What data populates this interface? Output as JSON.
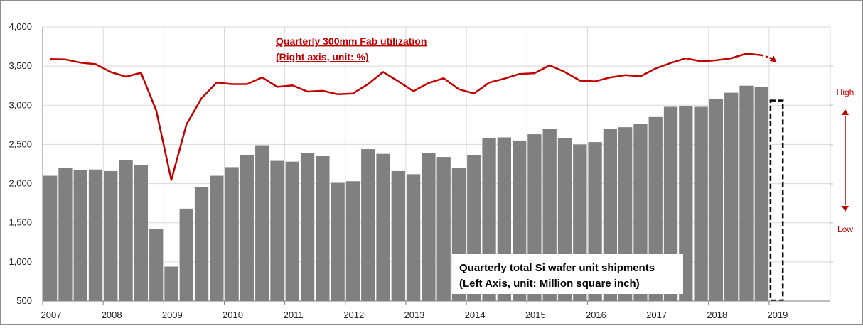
{
  "chart_data": {
    "type": "bar",
    "title": "",
    "categories": [
      "2007 Q1",
      "2007 Q2",
      "2007 Q3",
      "2007 Q4",
      "2008 Q1",
      "2008 Q2",
      "2008 Q3",
      "2008 Q4",
      "2009 Q1",
      "2009 Q2",
      "2009 Q3",
      "2009 Q4",
      "2010 Q1",
      "2010 Q2",
      "2010 Q3",
      "2010 Q4",
      "2011 Q1",
      "2011 Q2",
      "2011 Q3",
      "2011 Q4",
      "2012 Q1",
      "2012 Q2",
      "2012 Q3",
      "2012 Q4",
      "2013 Q1",
      "2013 Q2",
      "2013 Q3",
      "2013 Q4",
      "2014 Q1",
      "2014 Q2",
      "2014 Q3",
      "2014 Q4",
      "2015 Q1",
      "2015 Q2",
      "2015 Q3",
      "2015 Q4",
      "2016 Q1",
      "2016 Q2",
      "2016 Q3",
      "2016 Q4",
      "2017 Q1",
      "2017 Q2",
      "2017 Q3",
      "2017 Q4",
      "2018 Q1",
      "2018 Q2",
      "2018 Q3",
      "2018 Q4",
      "2019 Q1"
    ],
    "xtick_labels": [
      "2007",
      "2008",
      "2009",
      "2010",
      "2011",
      "2012",
      "2013",
      "2014",
      "2015",
      "2016",
      "2017",
      "2018",
      "2019"
    ],
    "ylim": [
      500,
      4000
    ],
    "ytick_values": [
      500,
      1000,
      1500,
      2000,
      2500,
      3000,
      3500,
      4000
    ],
    "ytick_labels": [
      "500",
      "1,000",
      "1,500",
      "2,000",
      "2,500",
      "3,000",
      "3,500",
      "4,000"
    ],
    "grid": true,
    "series": [
      {
        "name": "Quarterly total Si wafer unit shipments",
        "axis": "left",
        "color": "#808080",
        "values": [
          2100,
          2200,
          2170,
          2180,
          2160,
          2300,
          2240,
          1420,
          940,
          1680,
          1960,
          2100,
          2210,
          2360,
          2490,
          2290,
          2280,
          2390,
          2350,
          2010,
          2030,
          2440,
          2380,
          2160,
          2120,
          2390,
          2340,
          2200,
          2360,
          2580,
          2590,
          2550,
          2630,
          2700,
          2580,
          2500,
          2530,
          2700,
          2720,
          2760,
          2850,
          2980,
          2990,
          2980,
          3080,
          3160,
          3250,
          3230,
          null
        ],
        "forecast_placeholder": "2019 Q1 (dashed outline, value not shown)"
      },
      {
        "name": "Quarterly 300mm Fab utilization",
        "axis": "right",
        "color": "#c00000",
        "values_on_left_axis_scale": [
          3590,
          3585,
          3545,
          3525,
          3425,
          3365,
          3415,
          2935,
          2045,
          2755,
          3090,
          3290,
          3270,
          3270,
          3355,
          3235,
          3255,
          3175,
          3185,
          3140,
          3150,
          3270,
          3425,
          3305,
          3180,
          3285,
          3345,
          3205,
          3150,
          3290,
          3340,
          3400,
          3410,
          3510,
          3425,
          3315,
          3305,
          3355,
          3385,
          3370,
          3470,
          3540,
          3600,
          3560,
          3575,
          3600,
          3660,
          3640,
          3560
        ],
        "forecast_segment": "2018 Q4 to 2019 Q1 dotted with arrow"
      }
    ],
    "annotations": {
      "utilization_title_line1": "Quarterly 300mm Fab utilization",
      "utilization_title_line2": "(Right axis, unit: %)",
      "shipments_title_line1": "Quarterly total Si wafer unit shipments",
      "shipments_title_line2": "(Left Axis, unit: Million square inch)",
      "right_axis_high": "High",
      "right_axis_low": "Low"
    }
  }
}
